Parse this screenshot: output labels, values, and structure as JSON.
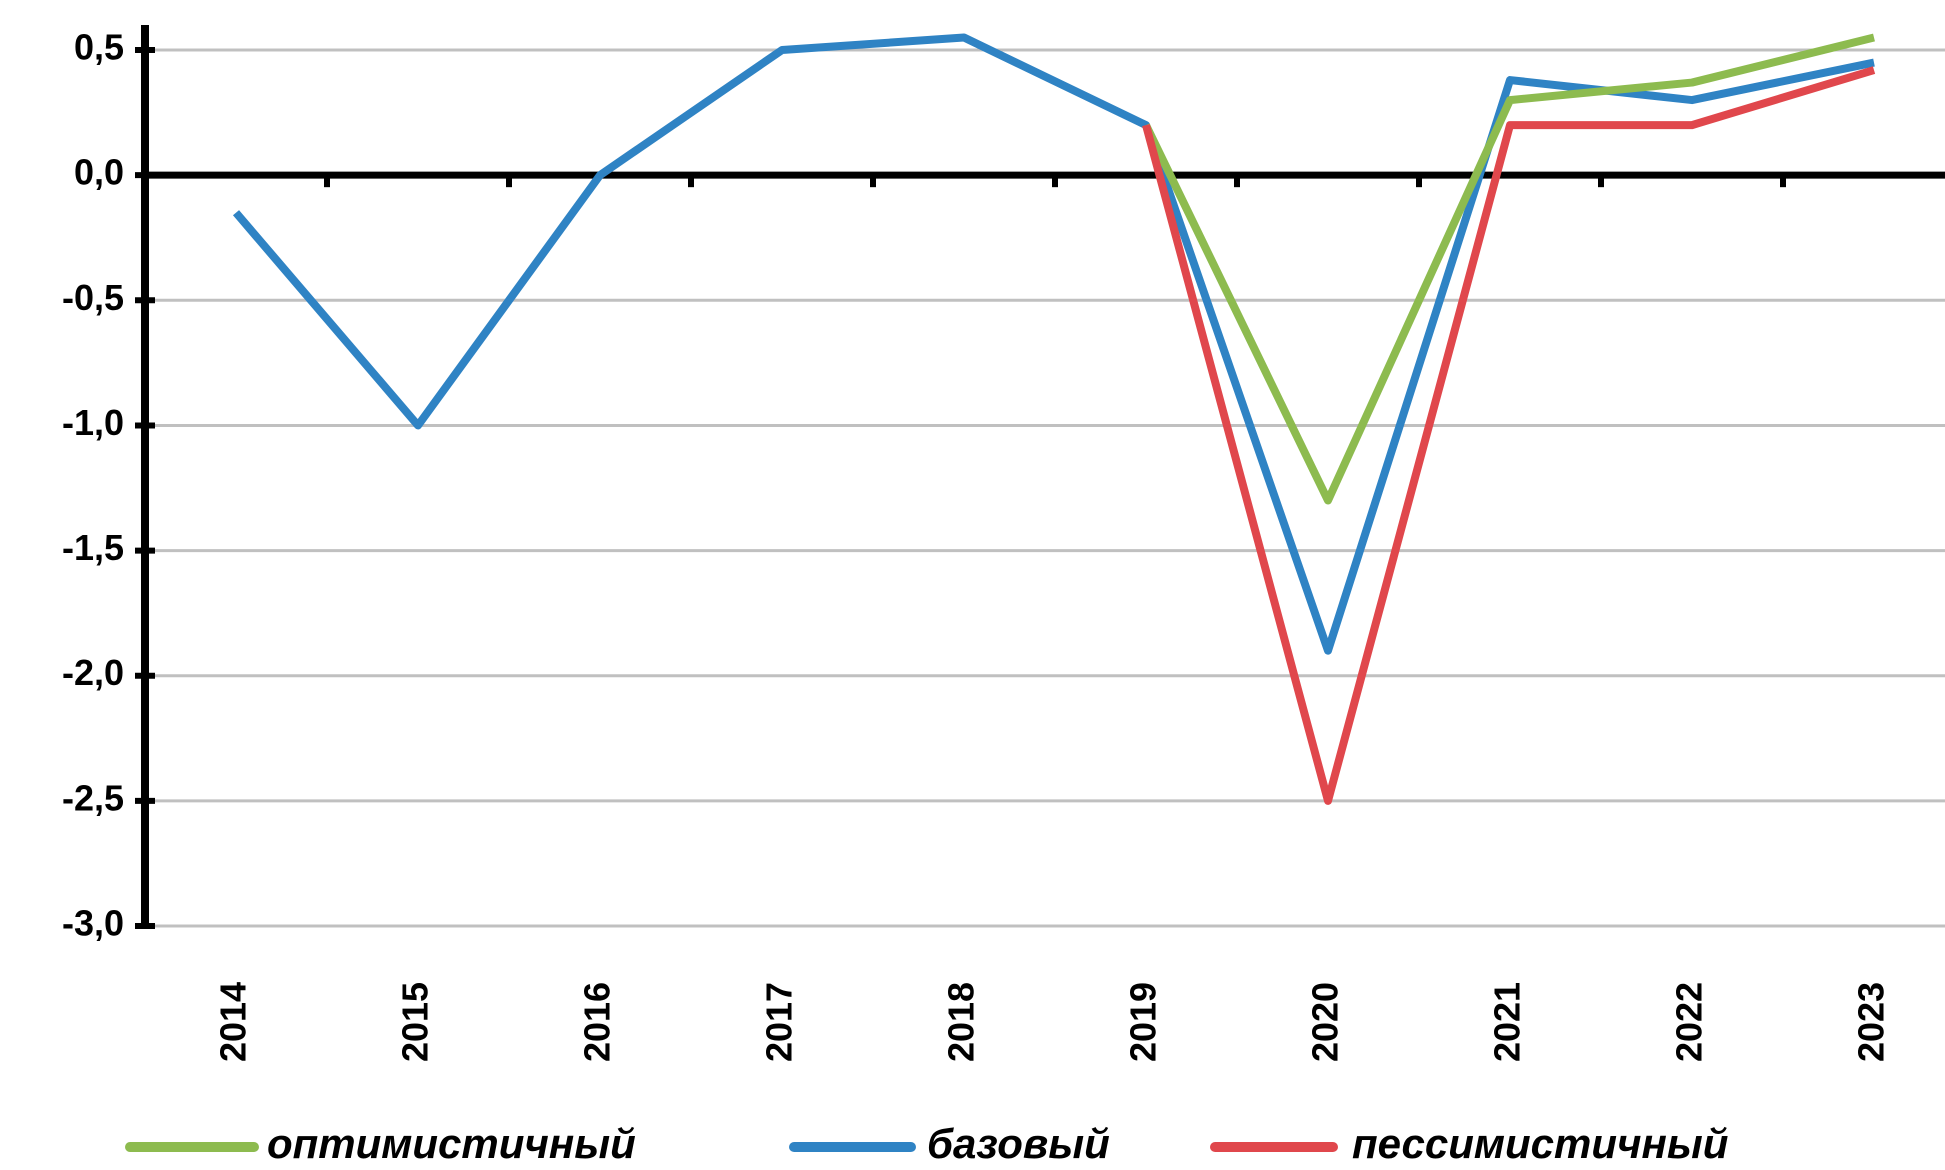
{
  "chart_data": {
    "type": "line",
    "categories": [
      "2014",
      "2015",
      "2016",
      "2017",
      "2018",
      "2019",
      "2020",
      "2021",
      "2022",
      "2023"
    ],
    "series": [
      {
        "name": "оптимистичный",
        "color": "#8dbb4f",
        "values": [
          null,
          null,
          null,
          null,
          null,
          0.2,
          -1.3,
          0.3,
          0.37,
          0.55
        ]
      },
      {
        "name": "базовый",
        "color": "#2f83c4",
        "values": [
          -0.15,
          -1.0,
          0.0,
          0.5,
          0.55,
          0.2,
          -1.9,
          0.38,
          0.3,
          0.45
        ]
      },
      {
        "name": "пессимистичный",
        "color": "#e0474c",
        "values": [
          null,
          null,
          null,
          null,
          null,
          0.2,
          -2.5,
          0.2,
          0.2,
          0.42
        ]
      }
    ],
    "ylim": [
      -3.0,
      0.6
    ],
    "yticks": [
      {
        "value": 0.5,
        "label": "0,5"
      },
      {
        "value": 0.0,
        "label": "0,0"
      },
      {
        "value": -0.5,
        "label": "-0,5"
      },
      {
        "value": -1.0,
        "label": "-1,0"
      },
      {
        "value": -1.5,
        "label": "-1,5"
      },
      {
        "value": -2.0,
        "label": "-2,0"
      },
      {
        "value": -2.5,
        "label": "-2,5"
      },
      {
        "value": -3.0,
        "label": "-3,0"
      }
    ],
    "grid": true,
    "legend": "bottom"
  }
}
